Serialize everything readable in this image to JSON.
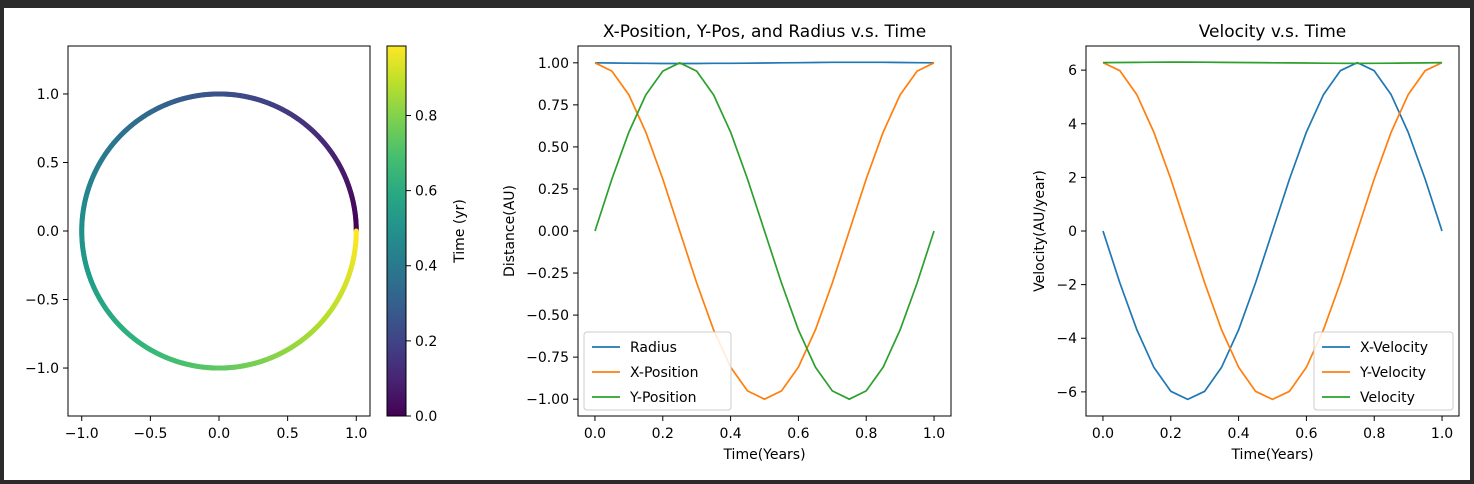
{
  "chart_data": [
    {
      "type": "scatter",
      "title": "",
      "xlabel": "",
      "ylabel": "",
      "xlim": [
        -1.1,
        1.1
      ],
      "ylim": [
        -1.35,
        1.35
      ],
      "xticks": [
        "−1.0",
        "−0.5",
        "0.0",
        "0.5",
        "1.0"
      ],
      "xtick_values": [
        -1.0,
        -0.5,
        0.0,
        0.5,
        1.0
      ],
      "yticks": [
        "−1.0",
        "−0.5",
        "0.0",
        "0.5",
        "1.0"
      ],
      "ytick_values": [
        -1.0,
        -0.5,
        0.0,
        0.5,
        1.0
      ],
      "series": [
        {
          "x_formula": "cos(2*pi*t)",
          "y_formula": "sin(2*pi*t)",
          "t_range": [
            0,
            1
          ]
        }
      ],
      "colorbar": {
        "label": "Time (yr)",
        "colormap": "viridis",
        "range": [
          0,
          0.985
        ],
        "ticks": [
          "0.0",
          "0.2",
          "0.4",
          "0.6",
          "0.8"
        ],
        "tick_values": [
          0,
          0.2,
          0.4,
          0.6,
          0.8
        ]
      }
    },
    {
      "type": "line",
      "title": "X-Position, Y-Pos, and Radius v.s. Time",
      "xlabel": "Time(Years)",
      "ylabel": "Distance(AU)",
      "xlim": [
        -0.05,
        1.05
      ],
      "ylim": [
        -1.1,
        1.1
      ],
      "xticks": [
        "0.0",
        "0.2",
        "0.4",
        "0.6",
        "0.8",
        "1.0"
      ],
      "xtick_values": [
        0,
        0.2,
        0.4,
        0.6,
        0.8,
        1.0
      ],
      "yticks": [
        "1.00",
        "0.75",
        "0.50",
        "0.25",
        "0.00",
        "−0.25",
        "−0.50",
        "−0.75",
        "−1.00"
      ],
      "ytick_values": [
        1.0,
        0.75,
        0.5,
        0.25,
        0.0,
        -0.25,
        -0.5,
        -0.75,
        -1.0
      ],
      "x": [
        0,
        0.05,
        0.1,
        0.15,
        0.2,
        0.25,
        0.3,
        0.35,
        0.4,
        0.45,
        0.5,
        0.55,
        0.6,
        0.65,
        0.7,
        0.75,
        0.8,
        0.85,
        0.9,
        0.95,
        1.0
      ],
      "series": [
        {
          "name": "Radius",
          "color": "#1f77b4",
          "values": [
            1.0,
            0.999,
            0.998,
            0.997,
            0.996,
            0.996,
            0.996,
            0.997,
            0.997,
            0.998,
            0.999,
            1.0,
            1.001,
            1.002,
            1.003,
            1.003,
            1.003,
            1.003,
            1.002,
            1.001,
            1.0
          ]
        },
        {
          "name": "X-Position",
          "color": "#ff7f0e",
          "values": [
            1.0,
            0.951,
            0.809,
            0.588,
            0.309,
            0.0,
            -0.309,
            -0.588,
            -0.809,
            -0.951,
            -1.0,
            -0.951,
            -0.809,
            -0.588,
            -0.309,
            0.0,
            0.309,
            0.588,
            0.809,
            0.951,
            1.0
          ]
        },
        {
          "name": "Y-Position",
          "color": "#2ca02c",
          "values": [
            0.0,
            0.309,
            0.588,
            0.809,
            0.951,
            1.0,
            0.951,
            0.809,
            0.588,
            0.309,
            0.0,
            -0.309,
            -0.588,
            -0.809,
            -0.951,
            -1.0,
            -0.951,
            -0.809,
            -0.588,
            -0.309,
            0.0
          ]
        }
      ],
      "legend": "lower-left"
    },
    {
      "type": "line",
      "title": "Velocity v.s. Time",
      "xlabel": "Time(Years)",
      "ylabel": "Velocity(AU/year)",
      "xlim": [
        -0.05,
        1.05
      ],
      "ylim": [
        -6.9,
        6.9
      ],
      "xticks": [
        "0.0",
        "0.2",
        "0.4",
        "0.6",
        "0.8",
        "1.0"
      ],
      "xtick_values": [
        0,
        0.2,
        0.4,
        0.6,
        0.8,
        1.0
      ],
      "yticks": [
        "6",
        "4",
        "2",
        "0",
        "−2",
        "−4",
        "−6"
      ],
      "ytick_values": [
        6,
        4,
        2,
        0,
        -2,
        -4,
        -6
      ],
      "x": [
        0,
        0.05,
        0.1,
        0.15,
        0.2,
        0.25,
        0.3,
        0.35,
        0.4,
        0.45,
        0.5,
        0.55,
        0.6,
        0.65,
        0.7,
        0.75,
        0.8,
        0.85,
        0.9,
        0.95,
        1.0
      ],
      "series": [
        {
          "name": "X-Velocity",
          "color": "#1f77b4",
          "values": [
            0.0,
            -1.94,
            -3.69,
            -5.08,
            -5.98,
            -6.28,
            -5.98,
            -5.08,
            -3.69,
            -1.94,
            0.0,
            1.94,
            3.69,
            5.08,
            5.98,
            6.28,
            5.98,
            5.08,
            3.69,
            1.94,
            0.0
          ]
        },
        {
          "name": "Y-Velocity",
          "color": "#ff7f0e",
          "values": [
            6.28,
            5.98,
            5.08,
            3.69,
            1.94,
            0.0,
            -1.94,
            -3.69,
            -5.08,
            -5.98,
            -6.28,
            -5.98,
            -5.08,
            -3.69,
            -1.94,
            0.0,
            1.94,
            3.69,
            5.08,
            5.98,
            6.28
          ]
        },
        {
          "name": "Velocity",
          "color": "#2ca02c",
          "values": [
            6.28,
            6.285,
            6.29,
            6.295,
            6.3,
            6.3,
            6.295,
            6.29,
            6.285,
            6.28,
            6.275,
            6.27,
            6.265,
            6.26,
            6.255,
            6.25,
            6.255,
            6.26,
            6.265,
            6.27,
            6.28
          ]
        }
      ],
      "legend": "lower-right"
    }
  ]
}
